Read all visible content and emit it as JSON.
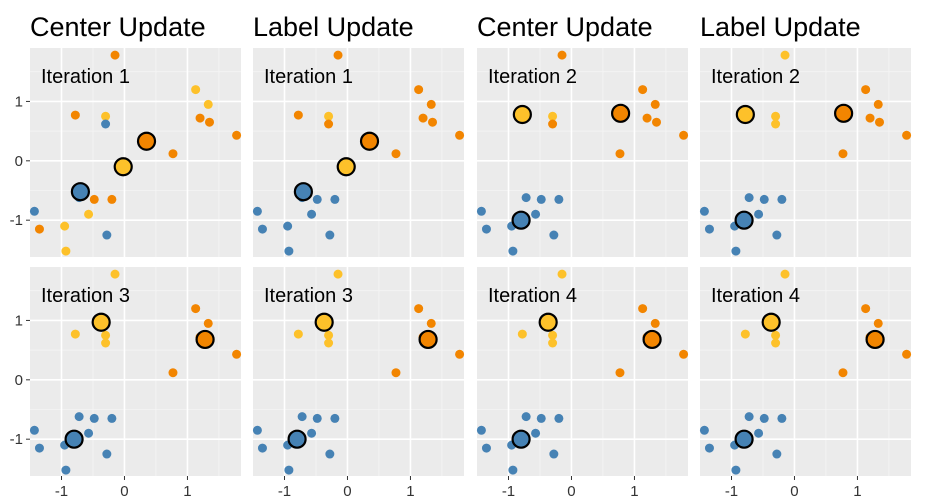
{
  "colors": {
    "panel_bg": "#ebebeb",
    "grid_major": "#ffffff",
    "grid_minor": "#f5f5f5",
    "cluster_blue": "#4682b4",
    "cluster_orange": "#f28500",
    "cluster_yellow": "#fdc12a",
    "tick": "#333333",
    "center_stroke": "#000000"
  },
  "chart_data": {
    "type": "scatter",
    "xlim": [
      -1.5,
      1.85
    ],
    "ylim": [
      -1.62,
      1.9
    ],
    "x_ticks": [
      -1,
      0,
      1
    ],
    "x_tick_labels": [
      "-1",
      "0",
      "1"
    ],
    "y_ticks": [
      -1,
      0,
      1
    ],
    "y_tick_labels": [
      "-1",
      "0",
      "1"
    ],
    "grid": true,
    "columns": [
      "Center Update",
      "Label Update",
      "Center Update",
      "Label Update"
    ],
    "points": [
      {
        "x": -1.43,
        "y": -0.85
      },
      {
        "x": -1.35,
        "y": -1.15
      },
      {
        "x": -0.95,
        "y": -1.1
      },
      {
        "x": -0.93,
        "y": -1.52
      },
      {
        "x": -0.78,
        "y": 0.77
      },
      {
        "x": -0.72,
        "y": -0.62
      },
      {
        "x": -0.57,
        "y": -0.9
      },
      {
        "x": -0.48,
        "y": -0.65
      },
      {
        "x": -0.3,
        "y": 0.75
      },
      {
        "x": -0.3,
        "y": 0.62
      },
      {
        "x": -0.28,
        "y": -1.25
      },
      {
        "x": -0.2,
        "y": -0.65
      },
      {
        "x": -0.15,
        "y": 1.78
      },
      {
        "x": 0.77,
        "y": 0.12
      },
      {
        "x": 1.13,
        "y": 1.2
      },
      {
        "x": 1.2,
        "y": 0.72
      },
      {
        "x": 1.33,
        "y": 0.95
      },
      {
        "x": 1.35,
        "y": 0.65
      },
      {
        "x": 1.78,
        "y": 0.43
      }
    ],
    "panels": [
      {
        "label": "Iteration 1",
        "colors": [
          "blue",
          "orange",
          "yellow",
          "yellow",
          "orange",
          "blue",
          "yellow",
          "orange",
          "yellow",
          "blue",
          "blue",
          "orange",
          "orange",
          "orange",
          "yellow",
          "orange",
          "yellow",
          "orange",
          "orange"
        ],
        "centers": [
          {
            "cluster": "blue",
            "x": -0.7,
            "y": -0.52
          },
          {
            "cluster": "yellow",
            "x": -0.02,
            "y": -0.1
          },
          {
            "cluster": "orange",
            "x": 0.35,
            "y": 0.33
          }
        ]
      },
      {
        "label": "Iteration 1",
        "colors": [
          "blue",
          "blue",
          "blue",
          "blue",
          "orange",
          "blue",
          "blue",
          "blue",
          "yellow",
          "orange",
          "blue",
          "blue",
          "orange",
          "orange",
          "orange",
          "orange",
          "orange",
          "orange",
          "orange"
        ],
        "centers": [
          {
            "cluster": "blue",
            "x": -0.7,
            "y": -0.52
          },
          {
            "cluster": "yellow",
            "x": -0.02,
            "y": -0.1
          },
          {
            "cluster": "orange",
            "x": 0.35,
            "y": 0.33
          }
        ]
      },
      {
        "label": "Iteration 2",
        "colors": [
          "blue",
          "blue",
          "blue",
          "blue",
          "orange",
          "blue",
          "blue",
          "blue",
          "yellow",
          "orange",
          "blue",
          "blue",
          "orange",
          "orange",
          "orange",
          "orange",
          "orange",
          "orange",
          "orange"
        ],
        "centers": [
          {
            "cluster": "blue",
            "x": -0.8,
            "y": -1.0
          },
          {
            "cluster": "yellow",
            "x": -0.78,
            "y": 0.78
          },
          {
            "cluster": "orange",
            "x": 0.78,
            "y": 0.8
          }
        ]
      },
      {
        "label": "Iteration 2",
        "colors": [
          "blue",
          "blue",
          "blue",
          "blue",
          "yellow",
          "blue",
          "blue",
          "blue",
          "yellow",
          "yellow",
          "blue",
          "blue",
          "yellow",
          "orange",
          "orange",
          "orange",
          "orange",
          "orange",
          "orange"
        ],
        "centers": [
          {
            "cluster": "blue",
            "x": -0.8,
            "y": -1.0
          },
          {
            "cluster": "yellow",
            "x": -0.78,
            "y": 0.78
          },
          {
            "cluster": "orange",
            "x": 0.78,
            "y": 0.8
          }
        ]
      },
      {
        "label": "Iteration 3",
        "colors": [
          "blue",
          "blue",
          "blue",
          "blue",
          "yellow",
          "blue",
          "blue",
          "blue",
          "yellow",
          "yellow",
          "blue",
          "blue",
          "yellow",
          "orange",
          "orange",
          "orange",
          "orange",
          "orange",
          "orange"
        ],
        "centers": [
          {
            "cluster": "blue",
            "x": -0.8,
            "y": -1.0
          },
          {
            "cluster": "yellow",
            "x": -0.37,
            "y": 0.97
          },
          {
            "cluster": "orange",
            "x": 1.28,
            "y": 0.68
          }
        ]
      },
      {
        "label": "Iteration 3",
        "colors": [
          "blue",
          "blue",
          "blue",
          "blue",
          "yellow",
          "blue",
          "blue",
          "blue",
          "yellow",
          "yellow",
          "blue",
          "blue",
          "yellow",
          "orange",
          "orange",
          "orange",
          "orange",
          "orange",
          "orange"
        ],
        "centers": [
          {
            "cluster": "blue",
            "x": -0.8,
            "y": -1.0
          },
          {
            "cluster": "yellow",
            "x": -0.37,
            "y": 0.97
          },
          {
            "cluster": "orange",
            "x": 1.28,
            "y": 0.68
          }
        ]
      },
      {
        "label": "Iteration 4",
        "colors": [
          "blue",
          "blue",
          "blue",
          "blue",
          "yellow",
          "blue",
          "blue",
          "blue",
          "yellow",
          "yellow",
          "blue",
          "blue",
          "yellow",
          "orange",
          "orange",
          "orange",
          "orange",
          "orange",
          "orange"
        ],
        "centers": [
          {
            "cluster": "blue",
            "x": -0.8,
            "y": -1.0
          },
          {
            "cluster": "yellow",
            "x": -0.37,
            "y": 0.97
          },
          {
            "cluster": "orange",
            "x": 1.28,
            "y": 0.68
          }
        ]
      },
      {
        "label": "Iteration 4",
        "colors": [
          "blue",
          "blue",
          "blue",
          "blue",
          "yellow",
          "blue",
          "blue",
          "blue",
          "yellow",
          "yellow",
          "blue",
          "blue",
          "yellow",
          "orange",
          "orange",
          "orange",
          "orange",
          "orange",
          "orange"
        ],
        "centers": [
          {
            "cluster": "blue",
            "x": -0.8,
            "y": -1.0
          },
          {
            "cluster": "yellow",
            "x": -0.37,
            "y": 0.97
          },
          {
            "cluster": "orange",
            "x": 1.28,
            "y": 0.68
          }
        ]
      }
    ]
  }
}
